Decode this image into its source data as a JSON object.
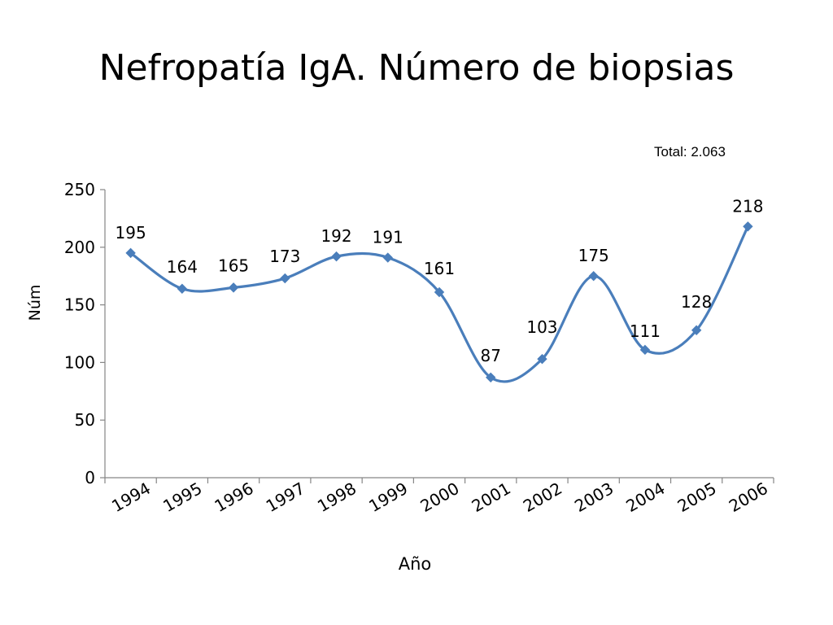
{
  "slide": {
    "title": "Nefropatía IgA. Número de biopsias",
    "total_note": "Total: 2.063"
  },
  "chart_data": {
    "type": "line",
    "title": "",
    "xlabel": "Año",
    "ylabel": "Núm",
    "categories": [
      "1994",
      "1995",
      "1996",
      "1997",
      "1998",
      "1999",
      "2000",
      "2001",
      "2002",
      "2003",
      "2004",
      "2005",
      "2006"
    ],
    "series": [
      {
        "values": [
          195,
          164,
          165,
          173,
          192,
          191,
          161,
          87,
          103,
          175,
          111,
          128,
          218
        ]
      }
    ],
    "ylim": [
      0,
      250
    ],
    "yticks": [
      0,
      50,
      100,
      150,
      200,
      250
    ],
    "grid": false,
    "legend": "none",
    "smooth": true,
    "data_labels": true,
    "line_color": "#4A7EBB"
  }
}
